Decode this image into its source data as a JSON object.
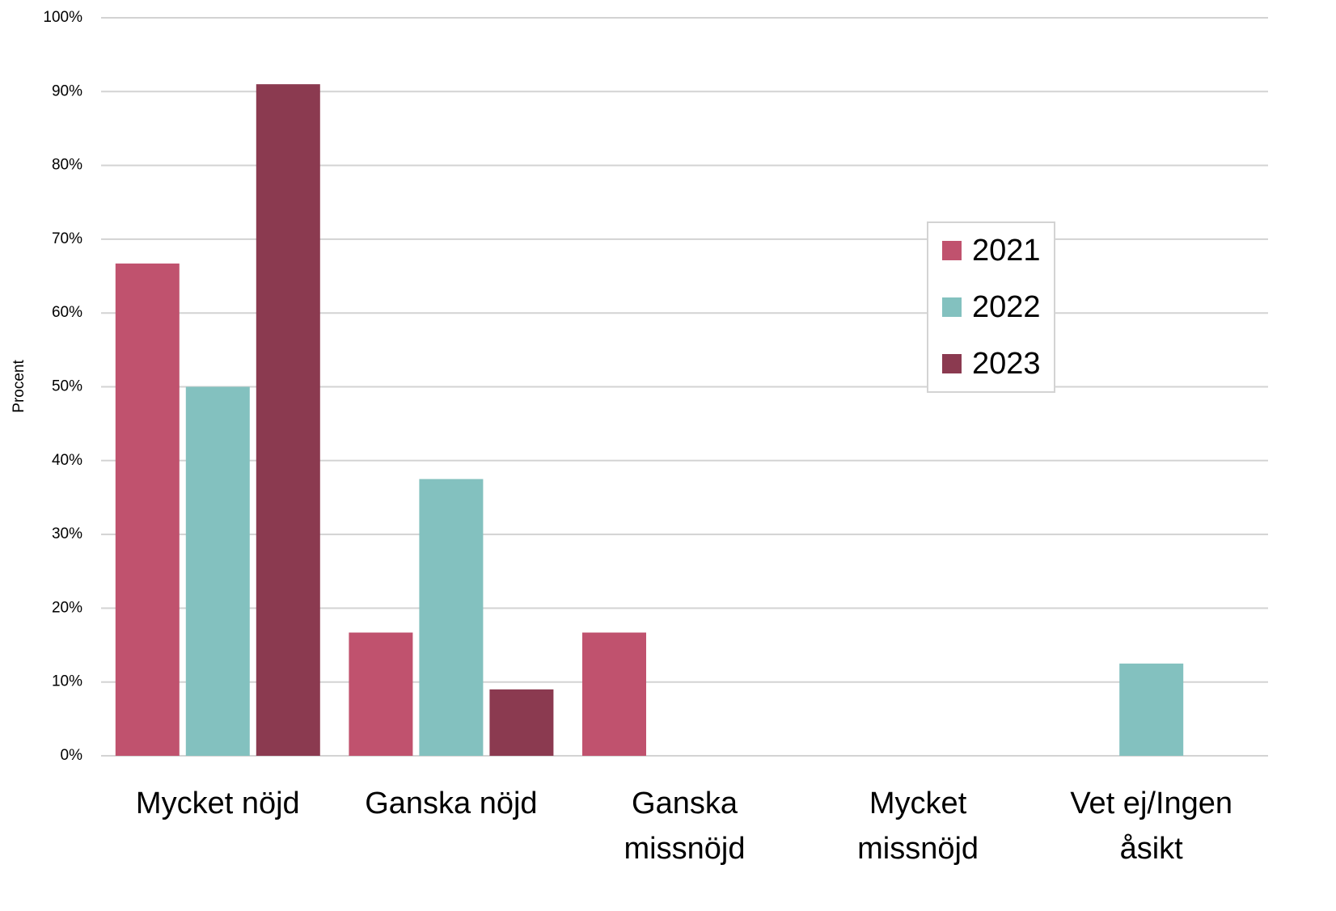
{
  "chart_data": {
    "type": "bar",
    "y_label": "Procent",
    "categories": [
      "Mycket nöjd",
      "Ganska nöjd",
      "Ganska missnöjd",
      "Mycket missnöjd",
      "Vet ej/Ingen åsikt"
    ],
    "series": [
      {
        "name": "2021",
        "color": "#c0526e",
        "values": [
          66.7,
          16.7,
          16.7,
          0,
          0
        ]
      },
      {
        "name": "2022",
        "color": "#83c1bf",
        "values": [
          50,
          37.5,
          0,
          0,
          12.5
        ]
      },
      {
        "name": "2023",
        "color": "#8b3a50",
        "values": [
          91,
          9,
          0,
          0,
          0
        ]
      }
    ],
    "ylim": [
      0,
      100
    ],
    "yticks": [
      {
        "value": 0,
        "label": "0%"
      },
      {
        "value": 10,
        "label": "10%"
      },
      {
        "value": 20,
        "label": "20%"
      },
      {
        "value": 30,
        "label": "30%"
      },
      {
        "value": 40,
        "label": "40%"
      },
      {
        "value": 50,
        "label": "50%"
      },
      {
        "value": 60,
        "label": "60%"
      },
      {
        "value": 70,
        "label": "70%"
      },
      {
        "value": 80,
        "label": "80%"
      },
      {
        "value": 90,
        "label": "90%"
      },
      {
        "value": 100,
        "label": "100%"
      }
    ],
    "grid": true,
    "legend": "right"
  }
}
